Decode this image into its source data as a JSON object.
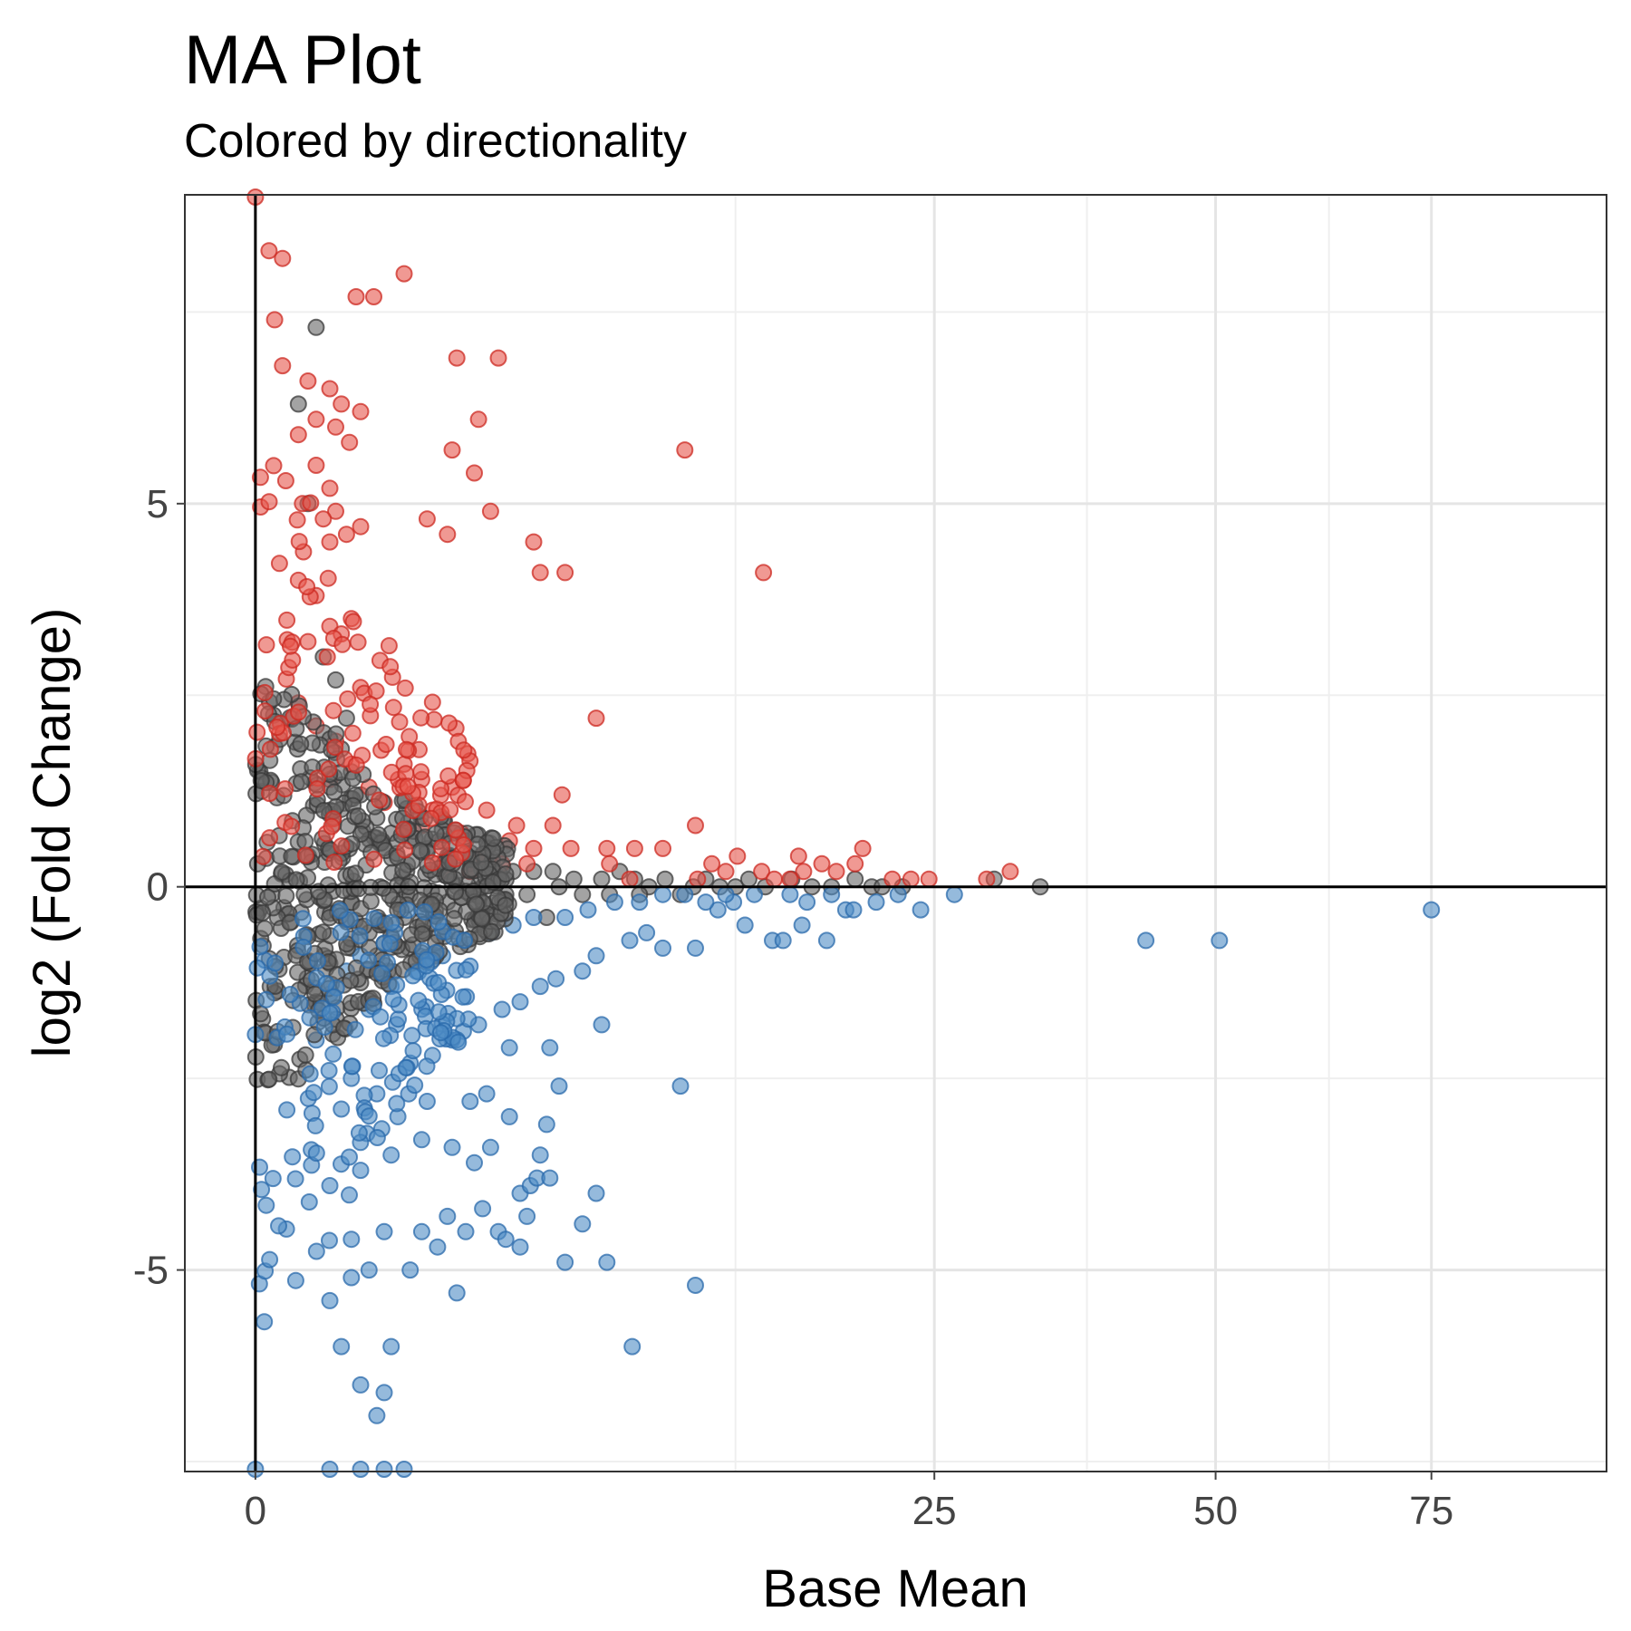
{
  "chart_data": {
    "type": "scatter",
    "title": "MA Plot",
    "subtitle": "Colored by directionality",
    "xlabel": "Base Mean",
    "ylabel": "log2 (Fold Change)",
    "x_ticks": [
      "0",
      "25",
      "50",
      "75"
    ],
    "y_ticks": [
      "5",
      "0",
      "-5"
    ],
    "xlim": [
      -0.27,
      99
    ],
    "ylim": [
      -7.63,
      9.03
    ],
    "x_scale": "sqrt",
    "grid": true,
    "colors": {
      "up": "#e6554b",
      "down": "#4f8cc4",
      "neutral": "#666666",
      "up_edge": "#cc2a22",
      "down_edge": "#2a6aab",
      "neutral_edge": "#3a3a3a"
    },
    "series": [
      {
        "values": [
          [
            0.0,
            9.0
          ],
          [
            0.01,
            8.3
          ],
          [
            0.04,
            8.2
          ],
          [
            1.2,
            8.0
          ],
          [
            0.55,
            7.7
          ],
          [
            0.76,
            7.7
          ],
          [
            0.02,
            7.4
          ],
          [
            2.2,
            6.9
          ],
          [
            3.2,
            6.9
          ],
          [
            0.04,
            6.8
          ],
          [
            0.15,
            6.6
          ],
          [
            0.3,
            6.5
          ],
          [
            0.4,
            6.3
          ],
          [
            0.6,
            6.2
          ],
          [
            2.7,
            6.1
          ],
          [
            0.2,
            6.1
          ],
          [
            0.35,
            6.0
          ],
          [
            0.1,
            5.9
          ],
          [
            0.48,
            5.8
          ],
          [
            2.1,
            5.7
          ],
          [
            10.0,
            5.7
          ],
          [
            2.6,
            5.4
          ],
          [
            0.2,
            5.5
          ],
          [
            0.05,
            5.3
          ],
          [
            0.3,
            5.2
          ],
          [
            0.12,
            5.0
          ],
          [
            0.35,
            4.9
          ],
          [
            3.0,
            4.9
          ],
          [
            1.6,
            4.8
          ],
          [
            0.25,
            4.8
          ],
          [
            0.6,
            4.7
          ],
          [
            2.0,
            4.6
          ],
          [
            0.45,
            4.6
          ],
          [
            0.3,
            4.5
          ],
          [
            4.2,
            4.5
          ],
          [
            4.4,
            4.1
          ],
          [
            5.2,
            4.1
          ],
          [
            14.0,
            4.1
          ],
          [
            0.1,
            4.0
          ],
          [
            0.2,
            3.8
          ],
          [
            0.5,
            3.5
          ],
          [
            0.3,
            3.4
          ],
          [
            0.4,
            3.3
          ],
          [
            0.15,
            3.2
          ],
          [
            0.28,
            3.0
          ],
          [
            0.6,
            2.6
          ],
          [
            6.3,
            2.2
          ],
          [
            0.1,
            2.4
          ],
          [
            0.2,
            2.1
          ],
          [
            0.35,
            1.9
          ],
          [
            0.5,
            1.6
          ],
          [
            0.3,
            1.4
          ],
          [
            1.2,
            1.6
          ],
          [
            1.5,
            1.4
          ],
          [
            0.7,
            1.3
          ],
          [
            2.1,
            1.3
          ],
          [
            5.1,
            1.2
          ],
          [
            0.9,
            1.1
          ],
          [
            2.9,
            1.0
          ],
          [
            1.7,
            1.0
          ],
          [
            4.8,
            0.8
          ],
          [
            10.5,
            0.8
          ],
          [
            1.5,
            0.8
          ],
          [
            2.3,
            0.7
          ],
          [
            3.7,
            0.8
          ],
          [
            1.2,
            0.7
          ],
          [
            1.9,
            0.6
          ],
          [
            2.4,
            0.6
          ],
          [
            3.5,
            0.6
          ],
          [
            5.4,
            0.5
          ],
          [
            6.7,
            0.5
          ],
          [
            4.2,
            0.5
          ],
          [
            7.8,
            0.5
          ],
          [
            9.0,
            0.5
          ],
          [
            12.6,
            0.4
          ],
          [
            16.0,
            0.4
          ],
          [
            20.0,
            0.5
          ],
          [
            2.8,
            0.4
          ],
          [
            3.3,
            0.3
          ],
          [
            4.0,
            0.3
          ],
          [
            11.3,
            0.3
          ],
          [
            12.0,
            0.2
          ],
          [
            13.9,
            0.2
          ],
          [
            17.4,
            0.3
          ],
          [
            19.5,
            0.3
          ],
          [
            22.0,
            0.1
          ],
          [
            24.6,
            0.1
          ],
          [
            30.9,
            0.2
          ],
          [
            23.3,
            0.1
          ],
          [
            1.8,
            0.3
          ],
          [
            2.0,
            0.2
          ],
          [
            2.5,
            0.2
          ],
          [
            6.8,
            0.3
          ],
          [
            7.6,
            0.1
          ],
          [
            10.6,
            0.1
          ],
          [
            14.6,
            0.1
          ],
          [
            15.5,
            0.1
          ],
          [
            16.3,
            0.2
          ],
          [
            18.3,
            0.2
          ],
          [
            29.0,
            0.1
          ]
        ]
      },
      {
        "values": [
          [
            0.4,
            1.8
          ],
          [
            0.5,
            1.5
          ],
          [
            0.6,
            1.2
          ],
          [
            0.3,
            1.0
          ],
          [
            0.8,
            0.9
          ],
          [
            1.0,
            0.7
          ],
          [
            1.3,
            0.6
          ],
          [
            1.6,
            0.5
          ],
          [
            2.0,
            0.4
          ],
          [
            2.5,
            0.3
          ],
          [
            3.0,
            0.3
          ],
          [
            3.6,
            0.2
          ],
          [
            4.2,
            0.2
          ],
          [
            4.8,
            0.2
          ],
          [
            5.5,
            0.1
          ],
          [
            6.5,
            0.1
          ],
          [
            7.2,
            0.2
          ],
          [
            7.8,
            0.1
          ],
          [
            8.4,
            0.0
          ],
          [
            9.1,
            0.1
          ],
          [
            9.8,
            -0.1
          ],
          [
            10.4,
            0.0
          ],
          [
            11.0,
            0.1
          ],
          [
            11.7,
            0.0
          ],
          [
            12.5,
            0.0
          ],
          [
            13.2,
            0.1
          ],
          [
            14.1,
            0.0
          ],
          [
            15.6,
            0.1
          ],
          [
            16.8,
            0.0
          ],
          [
            18.0,
            0.0
          ],
          [
            19.5,
            0.1
          ],
          [
            20.6,
            0.0
          ],
          [
            21.3,
            0.0
          ],
          [
            22.7,
            0.0
          ],
          [
            33.4,
            0.0
          ],
          [
            29.6,
            0.1
          ],
          [
            2.2,
            0.0
          ],
          [
            2.8,
            0.0
          ],
          [
            3.4,
            -0.1
          ],
          [
            4.0,
            -0.1
          ],
          [
            5.0,
            0.0
          ],
          [
            5.8,
            -0.1
          ],
          [
            6.8,
            -0.1
          ],
          [
            8.0,
            -0.1
          ],
          [
            0.1,
            6.3
          ],
          [
            0.2,
            7.3
          ],
          [
            0.15,
            5.0
          ],
          [
            0.25,
            3.0
          ],
          [
            0.35,
            2.7
          ],
          [
            0.45,
            2.2
          ],
          [
            0.2,
            -1.5
          ],
          [
            0.3,
            -1.0
          ],
          [
            0.5,
            -0.8
          ],
          [
            0.7,
            -0.6
          ],
          [
            0.9,
            -0.5
          ],
          [
            1.2,
            -0.4
          ],
          [
            1.5,
            -0.3
          ],
          [
            2.0,
            -0.2
          ],
          [
            2.5,
            -0.1
          ],
          [
            4.6,
            -0.4
          ]
        ]
      },
      {
        "values": [
          [
            0.0,
            -7.6
          ],
          [
            0.3,
            -7.6
          ],
          [
            0.6,
            -7.6
          ],
          [
            0.9,
            -7.6
          ],
          [
            1.2,
            -7.6
          ],
          [
            0.8,
            -6.9
          ],
          [
            0.6,
            -6.5
          ],
          [
            0.9,
            -6.6
          ],
          [
            0.4,
            -6.0
          ],
          [
            1.0,
            -6.0
          ],
          [
            2.2,
            -5.3
          ],
          [
            7.7,
            -6.0
          ],
          [
            0.3,
            -5.4
          ],
          [
            0.5,
            -5.1
          ],
          [
            0.7,
            -5.0
          ],
          [
            1.3,
            -5.0
          ],
          [
            1.8,
            -4.7
          ],
          [
            2.4,
            -4.5
          ],
          [
            3.2,
            -4.5
          ],
          [
            3.8,
            -4.7
          ],
          [
            5.2,
            -4.9
          ],
          [
            6.7,
            -4.9
          ],
          [
            10.5,
            -5.2
          ],
          [
            0.5,
            -4.6
          ],
          [
            0.9,
            -4.5
          ],
          [
            1.5,
            -4.5
          ],
          [
            2.0,
            -4.3
          ],
          [
            3.4,
            -4.6
          ],
          [
            4.0,
            -4.3
          ],
          [
            5.8,
            -4.4
          ],
          [
            6.3,
            -4.0
          ],
          [
            2.8,
            -4.2
          ],
          [
            3.8,
            -4.0
          ],
          [
            4.1,
            -3.9
          ],
          [
            4.3,
            -3.8
          ],
          [
            4.7,
            -3.8
          ],
          [
            0.3,
            -3.9
          ],
          [
            0.6,
            -3.7
          ],
          [
            1.0,
            -3.5
          ],
          [
            1.5,
            -3.3
          ],
          [
            2.1,
            -3.4
          ],
          [
            2.6,
            -3.6
          ],
          [
            3.0,
            -3.4
          ],
          [
            3.5,
            -3.0
          ],
          [
            4.4,
            -3.5
          ],
          [
            4.6,
            -3.1
          ],
          [
            0.4,
            -2.9
          ],
          [
            0.8,
            -2.7
          ],
          [
            1.1,
            -3.0
          ],
          [
            1.6,
            -2.8
          ],
          [
            2.5,
            -2.8
          ],
          [
            2.9,
            -2.7
          ],
          [
            9.8,
            -2.6
          ],
          [
            3.5,
            -2.1
          ],
          [
            4.7,
            -2.1
          ],
          [
            5.0,
            -2.6
          ],
          [
            0.5,
            -2.5
          ],
          [
            1.3,
            -2.3
          ],
          [
            1.7,
            -2.2
          ],
          [
            2.1,
            -2.0
          ],
          [
            2.7,
            -1.8
          ],
          [
            3.3,
            -1.6
          ],
          [
            3.8,
            -1.5
          ],
          [
            4.4,
            -1.3
          ],
          [
            4.9,
            -1.2
          ],
          [
            5.8,
            -1.1
          ],
          [
            6.5,
            -1.8
          ],
          [
            6.3,
            -0.9
          ],
          [
            7.6,
            -0.7
          ],
          [
            8.3,
            -0.6
          ],
          [
            9.0,
            -0.8
          ],
          [
            10.5,
            -0.8
          ],
          [
            11.6,
            -0.3
          ],
          [
            12.4,
            -0.2
          ],
          [
            13.0,
            -0.5
          ],
          [
            14.5,
            -0.7
          ],
          [
            15.1,
            -0.7
          ],
          [
            16.2,
            -0.5
          ],
          [
            17.7,
            -0.7
          ],
          [
            18.9,
            -0.3
          ],
          [
            19.4,
            -0.3
          ],
          [
            20.9,
            -0.2
          ],
          [
            22.4,
            -0.1
          ],
          [
            24.0,
            -0.3
          ],
          [
            26.5,
            -0.1
          ],
          [
            43.0,
            -0.7
          ],
          [
            50.4,
            -0.7
          ],
          [
            75.0,
            -0.3
          ],
          [
            0.7,
            -1.6
          ],
          [
            1.0,
            -1.3
          ],
          [
            1.4,
            -1.1
          ],
          [
            1.9,
            -0.9
          ],
          [
            2.4,
            -0.7
          ],
          [
            3.0,
            -0.6
          ],
          [
            3.6,
            -0.5
          ],
          [
            4.2,
            -0.4
          ],
          [
            5.2,
            -0.4
          ],
          [
            6.0,
            -0.3
          ],
          [
            7.0,
            -0.2
          ],
          [
            8.0,
            -0.2
          ],
          [
            9.0,
            -0.1
          ],
          [
            10.0,
            -0.1
          ],
          [
            11.0,
            -0.2
          ],
          [
            12.0,
            -0.1
          ],
          [
            13.5,
            -0.1
          ],
          [
            15.5,
            -0.1
          ],
          [
            16.5,
            -0.2
          ],
          [
            18.0,
            -0.1
          ],
          [
            0.2,
            -2.0
          ],
          [
            0.3,
            -1.4
          ],
          [
            0.45,
            -1.1
          ],
          [
            0.6,
            -0.9
          ]
        ]
      }
    ]
  }
}
